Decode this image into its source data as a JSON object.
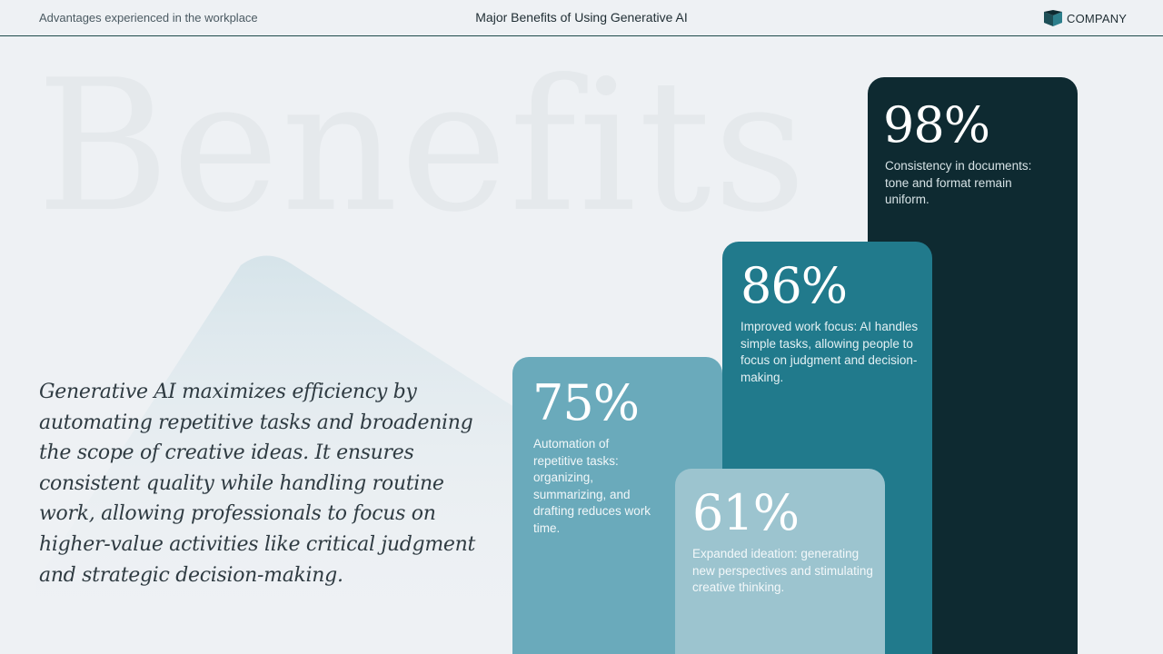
{
  "header": {
    "left_text": "Advantages experienced in the workplace",
    "title": "Major Benefits of Using Generative AI",
    "logo_text": "COMPANY",
    "logo_icon": "company-logo-icon"
  },
  "watermark": "Benefits",
  "lead_text": "Generative AI maximizes efficiency by automating repetitive tasks and broadening the scope of creative ideas. It ensures consistent quality while handling routine work, allowing professionals to focus on higher-value activities like critical judgment and strategic decision-making.",
  "stats": [
    {
      "value": "98%",
      "description": "Consistency in documents: tone and format remain uniform.",
      "color": "#0e2a31"
    },
    {
      "value": "86%",
      "description": "Improved work focus: AI handles simple tasks, allowing people to focus on judgment and decision-making.",
      "color": "#217a8c"
    },
    {
      "value": "75%",
      "description": "Automation of repetitive tasks: organizing, summarizing, and drafting reduces work time.",
      "color": "#6aaabb"
    },
    {
      "value": "61%",
      "description": "Expanded ideation: generating new perspectives and stimulating creative thinking.",
      "color": "#9cc4cf"
    }
  ],
  "colors": {
    "background": "#eef1f4",
    "header_rule": "#1e4a4a",
    "logo_accent": "#1d4f57"
  }
}
